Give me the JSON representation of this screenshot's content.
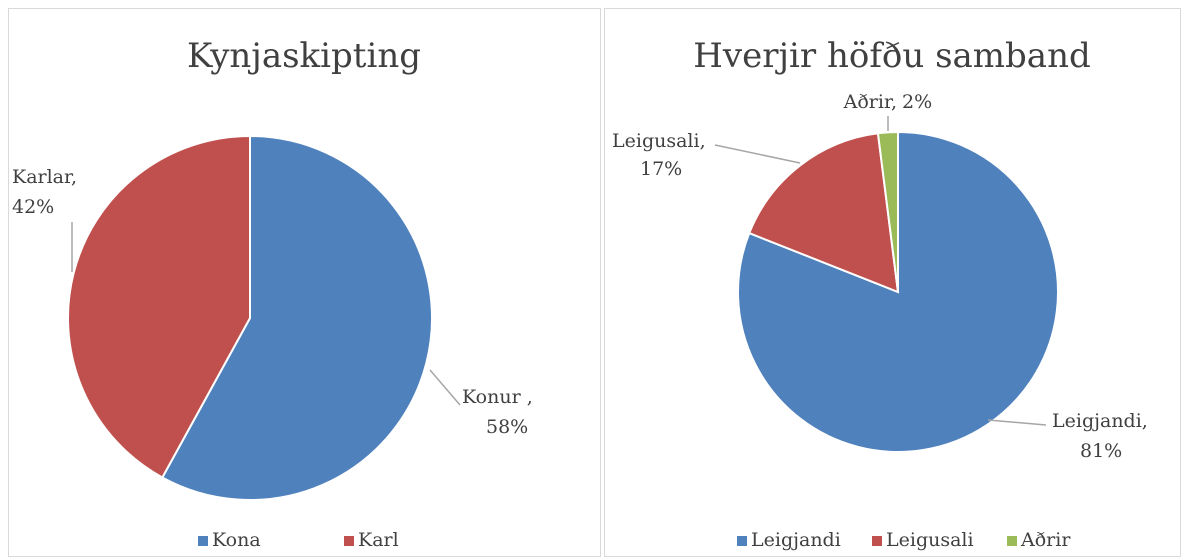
{
  "chart_data": [
    {
      "type": "pie",
      "title": "Kynjaskipting",
      "categories": [
        "Kona",
        "Karl"
      ],
      "values": [
        58,
        42
      ],
      "colors": [
        "#4f81bd",
        "#c0504d"
      ],
      "label_names": [
        "Konur ,",
        "Karlar,"
      ],
      "value_labels": [
        "58%",
        "42%"
      ],
      "legend": "bottom"
    },
    {
      "type": "pie",
      "title": "Hverjir höfðu samband",
      "categories": [
        "Leigjandi",
        "Leigusali",
        "Aðrir"
      ],
      "values": [
        81,
        17,
        2
      ],
      "colors": [
        "#4f81bd",
        "#c0504d",
        "#9bbb59"
      ],
      "label_names": [
        "Leigjandi,",
        "Leigusali,",
        "Aðrir,"
      ],
      "value_labels": [
        "81%",
        "17%",
        "2%"
      ],
      "legend": "bottom"
    }
  ]
}
